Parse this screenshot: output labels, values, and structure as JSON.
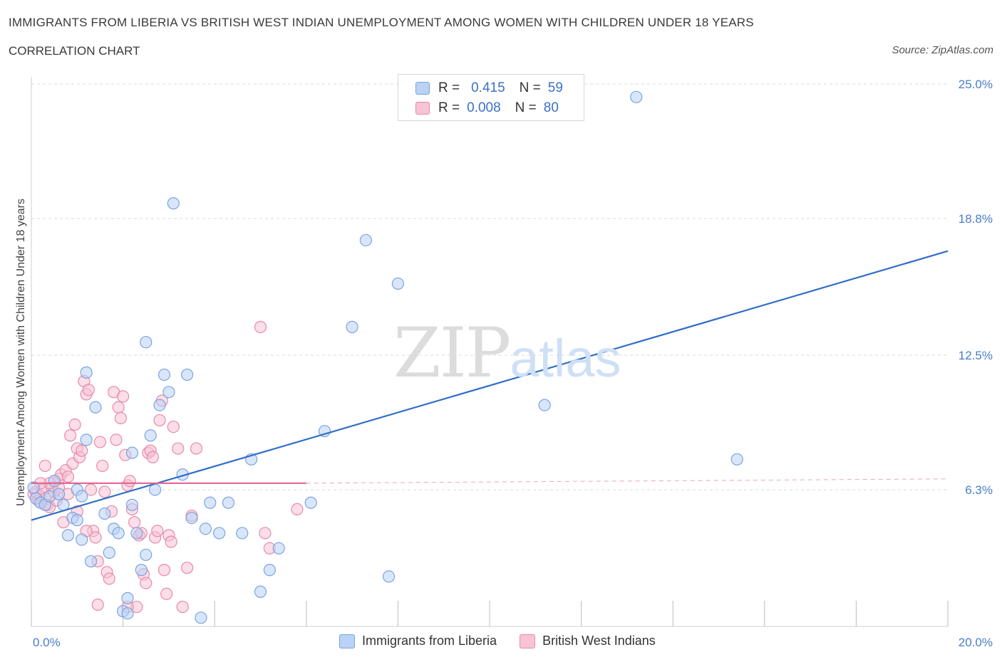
{
  "title": "IMMIGRANTS FROM LIBERIA VS BRITISH WEST INDIAN UNEMPLOYMENT AMONG WOMEN WITH CHILDREN UNDER 18 YEARS",
  "subtitle": "CORRELATION CHART",
  "source": "Source: ZipAtlas.com",
  "watermark": {
    "zip": "ZIP",
    "atlas": "atlas"
  },
  "legend": {
    "rows": [
      {
        "r_label": "R =",
        "r_value": "0.415",
        "n_label": "N =",
        "n_value": "59"
      },
      {
        "r_label": "R =",
        "r_value": "0.008",
        "n_label": "N =",
        "n_value": "80"
      }
    ]
  },
  "bottom_legend": [
    "Immigrants from Liberia",
    "British West Indians"
  ],
  "colors": {
    "blue_fill": "#b9d2f5",
    "blue_stroke": "#7aa3e0",
    "blue_line": "#2f6ec9",
    "pink_fill": "#f8c3d4",
    "pink_stroke": "#e88aa8",
    "pink_line": "#e2648e",
    "grid": "#d9d9d9",
    "axis_text": "#4a7cc9"
  },
  "chart_data": {
    "type": "scatter",
    "ylabel": "Unemployment Among Women with Children Under 18 years",
    "xlabel": "",
    "xlim": [
      0,
      20
    ],
    "ylim": [
      0,
      25
    ],
    "x_tick_labels": [
      {
        "value": 0,
        "label": "0.0%"
      },
      {
        "value": 20,
        "label": "20.0%"
      }
    ],
    "y_tick_labels": [
      {
        "value": 6.3,
        "label": "6.3%"
      },
      {
        "value": 12.5,
        "label": "12.5%"
      },
      {
        "value": 18.8,
        "label": "18.8%"
      },
      {
        "value": 25.0,
        "label": "25.0%"
      }
    ],
    "grid": "horizontal dashed",
    "series": [
      {
        "name": "Immigrants from Liberia",
        "color": "#b9d2f5",
        "trend": {
          "x": [
            0,
            20
          ],
          "y": [
            4.9,
            17.3
          ]
        },
        "points": [
          [
            0.1,
            5.9
          ],
          [
            0.2,
            5.7
          ],
          [
            0.3,
            5.6
          ],
          [
            0.4,
            6.0
          ],
          [
            0.5,
            6.7
          ],
          [
            0.6,
            6.1
          ],
          [
            0.7,
            5.6
          ],
          [
            0.8,
            4.2
          ],
          [
            0.9,
            5.0
          ],
          [
            1.0,
            4.9
          ],
          [
            1.0,
            6.3
          ],
          [
            1.1,
            6.0
          ],
          [
            1.1,
            4.0
          ],
          [
            1.2,
            11.7
          ],
          [
            1.2,
            8.6
          ],
          [
            1.3,
            3.0
          ],
          [
            1.4,
            10.1
          ],
          [
            1.6,
            5.2
          ],
          [
            1.7,
            3.4
          ],
          [
            1.8,
            4.5
          ],
          [
            1.9,
            4.3
          ],
          [
            2.0,
            0.7
          ],
          [
            2.1,
            1.3
          ],
          [
            2.1,
            0.6
          ],
          [
            2.2,
            8.0
          ],
          [
            2.2,
            5.6
          ],
          [
            2.3,
            4.3
          ],
          [
            2.4,
            2.6
          ],
          [
            2.5,
            3.3
          ],
          [
            2.5,
            13.1
          ],
          [
            2.6,
            8.8
          ],
          [
            2.7,
            6.3
          ],
          [
            2.8,
            10.2
          ],
          [
            2.9,
            11.6
          ],
          [
            3.0,
            10.8
          ],
          [
            3.1,
            19.5
          ],
          [
            3.3,
            7.0
          ],
          [
            3.4,
            11.6
          ],
          [
            3.5,
            5.0
          ],
          [
            3.7,
            0.4
          ],
          [
            3.8,
            4.5
          ],
          [
            3.9,
            5.7
          ],
          [
            4.1,
            4.3
          ],
          [
            4.3,
            5.7
          ],
          [
            4.6,
            4.3
          ],
          [
            4.8,
            7.7
          ],
          [
            5.0,
            1.6
          ],
          [
            5.2,
            2.6
          ],
          [
            5.4,
            3.6
          ],
          [
            6.1,
            5.7
          ],
          [
            6.4,
            9.0
          ],
          [
            7.0,
            13.8
          ],
          [
            7.3,
            17.8
          ],
          [
            7.8,
            2.3
          ],
          [
            8.0,
            15.8
          ],
          [
            11.2,
            10.2
          ],
          [
            13.2,
            24.4
          ],
          [
            15.4,
            7.7
          ],
          [
            0.05,
            6.4
          ]
        ]
      },
      {
        "name": "British West Indians",
        "color": "#f8c3d4",
        "trend": {
          "x": [
            0,
            6.0
          ],
          "y": [
            6.6,
            6.6
          ],
          "dashed_to": [
            20,
            6.8
          ]
        },
        "points": [
          [
            0.05,
            6.1
          ],
          [
            0.1,
            6.2
          ],
          [
            0.15,
            5.8
          ],
          [
            0.2,
            6.0
          ],
          [
            0.25,
            6.3
          ],
          [
            0.3,
            5.9
          ],
          [
            0.35,
            5.6
          ],
          [
            0.4,
            5.5
          ],
          [
            0.45,
            6.4
          ],
          [
            0.5,
            6.2
          ],
          [
            0.55,
            5.8
          ],
          [
            0.6,
            6.8
          ],
          [
            0.65,
            7.0
          ],
          [
            0.7,
            4.8
          ],
          [
            0.75,
            7.2
          ],
          [
            0.8,
            6.9
          ],
          [
            0.85,
            8.8
          ],
          [
            0.9,
            7.5
          ],
          [
            0.95,
            9.3
          ],
          [
            1.0,
            8.2
          ],
          [
            1.05,
            7.8
          ],
          [
            1.1,
            8.1
          ],
          [
            1.15,
            11.3
          ],
          [
            1.2,
            10.7
          ],
          [
            1.25,
            10.9
          ],
          [
            1.3,
            6.3
          ],
          [
            1.35,
            4.4
          ],
          [
            1.4,
            4.1
          ],
          [
            1.45,
            3.0
          ],
          [
            1.5,
            8.5
          ],
          [
            1.55,
            7.4
          ],
          [
            1.6,
            6.2
          ],
          [
            1.65,
            2.5
          ],
          [
            1.7,
            2.2
          ],
          [
            1.75,
            5.3
          ],
          [
            1.8,
            10.8
          ],
          [
            1.85,
            8.6
          ],
          [
            1.9,
            10.1
          ],
          [
            1.95,
            9.6
          ],
          [
            2.0,
            10.6
          ],
          [
            2.05,
            7.9
          ],
          [
            2.1,
            6.5
          ],
          [
            2.15,
            6.7
          ],
          [
            2.2,
            5.4
          ],
          [
            2.25,
            4.8
          ],
          [
            2.3,
            0.9
          ],
          [
            2.35,
            4.2
          ],
          [
            2.4,
            4.3
          ],
          [
            2.45,
            2.4
          ],
          [
            2.5,
            2.0
          ],
          [
            2.55,
            8.0
          ],
          [
            2.6,
            8.1
          ],
          [
            2.65,
            7.8
          ],
          [
            2.7,
            4.1
          ],
          [
            2.75,
            4.4
          ],
          [
            2.8,
            9.5
          ],
          [
            2.85,
            10.4
          ],
          [
            2.9,
            2.6
          ],
          [
            2.95,
            1.5
          ],
          [
            3.0,
            4.2
          ],
          [
            3.05,
            3.9
          ],
          [
            3.1,
            9.2
          ],
          [
            3.2,
            8.2
          ],
          [
            3.3,
            0.9
          ],
          [
            3.4,
            2.7
          ],
          [
            3.5,
            5.1
          ],
          [
            3.6,
            8.2
          ],
          [
            1.2,
            4.4
          ],
          [
            1.0,
            5.3
          ],
          [
            0.8,
            6.1
          ],
          [
            0.6,
            6.4
          ],
          [
            0.4,
            6.6
          ],
          [
            0.3,
            7.4
          ],
          [
            5.0,
            13.8
          ],
          [
            5.1,
            4.3
          ],
          [
            5.2,
            3.6
          ],
          [
            5.8,
            5.4
          ],
          [
            1.45,
            1.0
          ],
          [
            2.1,
            0.9
          ],
          [
            0.2,
            6.6
          ]
        ]
      }
    ]
  }
}
